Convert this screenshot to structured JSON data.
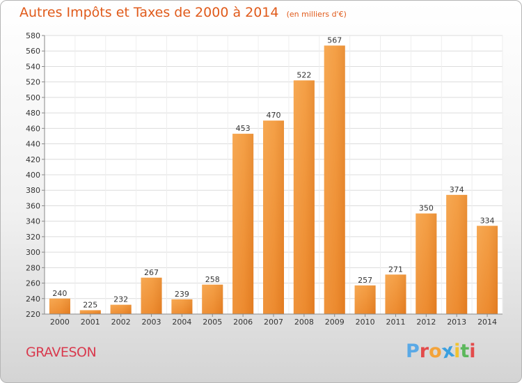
{
  "chart_data": {
    "type": "bar",
    "title": "Autres Impôts et Taxes de 2000 à 2014",
    "unit": "(en milliers d'€)",
    "categories": [
      "2000",
      "2001",
      "2002",
      "2003",
      "2004",
      "2005",
      "2006",
      "2007",
      "2008",
      "2009",
      "2010",
      "2011",
      "2012",
      "2013",
      "2014"
    ],
    "values": [
      240,
      225,
      232,
      267,
      239,
      258,
      453,
      470,
      522,
      567,
      257,
      271,
      350,
      374,
      334
    ],
    "ylim": [
      220,
      580
    ],
    "yticks": [
      220,
      240,
      260,
      280,
      300,
      320,
      340,
      360,
      380,
      400,
      420,
      440,
      460,
      480,
      500,
      520,
      540,
      560,
      580
    ],
    "grid": true,
    "bar_color": "#f39a3e",
    "bar_color_dark": "#e67e22"
  },
  "location": "GRAVESON",
  "logo": {
    "letters": [
      "P",
      "r",
      "o",
      "x",
      "i",
      "t",
      "i"
    ],
    "colors": [
      "#5aa9e6",
      "#e34b4b",
      "#f3a33a",
      "#3aa0e0",
      "#f0c330",
      "#5cb85c",
      "#e34b4b"
    ]
  }
}
